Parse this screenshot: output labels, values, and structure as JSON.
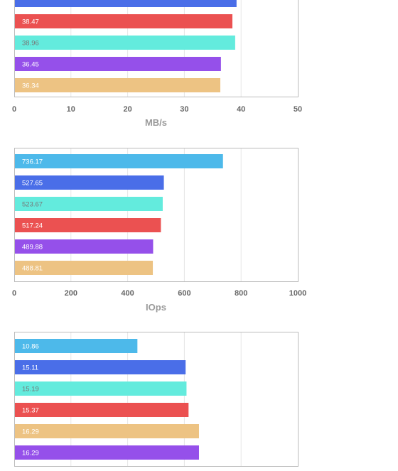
{
  "colors": {
    "cyan": "#4DB9EA",
    "blue": "#4A6EE8",
    "teal": "#63EBDD",
    "red": "#EB5151",
    "purple": "#9550EA",
    "tan": "#EDC383",
    "frame": "#bbbbbb",
    "grid": "#e6e6e6"
  },
  "chart_data": [
    {
      "type": "bar",
      "orientation": "horizontal",
      "xlabel": "MB/s",
      "xlim": [
        0,
        50
      ],
      "ticks": [
        "0",
        "10",
        "20",
        "30",
        "40",
        "50"
      ],
      "grid": true,
      "bars": [
        {
          "value": 39.2,
          "label": "",
          "color": "blue"
        },
        {
          "value": 38.47,
          "label": "38.47",
          "color": "red"
        },
        {
          "value": 38.96,
          "label": "38.96",
          "color": "teal"
        },
        {
          "value": 36.45,
          "label": "36.45",
          "color": "purple"
        },
        {
          "value": 36.34,
          "label": "36.34",
          "color": "tan"
        }
      ]
    },
    {
      "type": "bar",
      "orientation": "horizontal",
      "xlabel": "IOps",
      "xlim": [
        0,
        1000
      ],
      "ticks": [
        "0",
        "200",
        "400",
        "600",
        "800",
        "1000"
      ],
      "grid": true,
      "bars": [
        {
          "value": 736.17,
          "label": "736.17",
          "color": "cyan"
        },
        {
          "value": 527.65,
          "label": "527.65",
          "color": "blue"
        },
        {
          "value": 523.67,
          "label": "523.67",
          "color": "teal"
        },
        {
          "value": 517.24,
          "label": "517.24",
          "color": "red"
        },
        {
          "value": 489.88,
          "label": "489.88",
          "color": "purple"
        },
        {
          "value": 488.81,
          "label": "488.81",
          "color": "tan"
        }
      ]
    },
    {
      "type": "bar",
      "orientation": "horizontal",
      "xlabel": "",
      "xlim": [
        0,
        25
      ],
      "ticks": [],
      "grid": true,
      "bars": [
        {
          "value": 10.86,
          "label": "10.86",
          "color": "cyan"
        },
        {
          "value": 15.11,
          "label": "15.11",
          "color": "blue"
        },
        {
          "value": 15.19,
          "label": "15.19",
          "color": "teal"
        },
        {
          "value": 15.37,
          "label": "15.37",
          "color": "red"
        },
        {
          "value": 16.29,
          "label": "16.29",
          "color": "tan"
        },
        {
          "value": 16.29,
          "label": "16.29",
          "color": "purple"
        }
      ]
    }
  ]
}
